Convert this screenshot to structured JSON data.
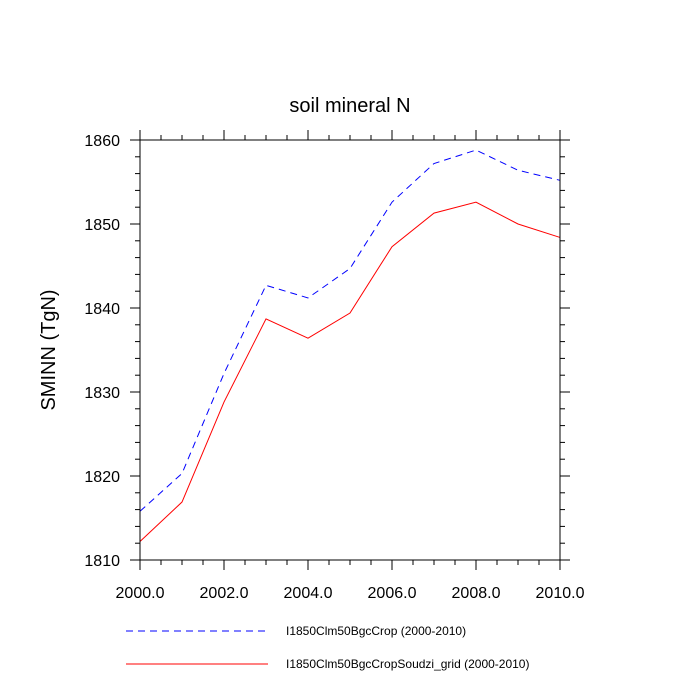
{
  "chart_data": {
    "type": "line",
    "title": "soil mineral N",
    "xlabel": "",
    "ylabel": "SMINN  (TgN)",
    "xlim": [
      2000,
      2010
    ],
    "ylim": [
      1810,
      1860
    ],
    "x_ticks": [
      "2000.0",
      "2002.0",
      "2004.0",
      "2006.0",
      "2008.0",
      "2010.0"
    ],
    "y_ticks": [
      "1810",
      "1820",
      "1830",
      "1840",
      "1850",
      "1860"
    ],
    "grid": false,
    "legend_placement": "bottom",
    "x": [
      2000,
      2001,
      2002,
      2003,
      2004,
      2005,
      2006,
      2007,
      2008,
      2009,
      2010
    ],
    "series": [
      {
        "name": "I1850Clm50BgcCrop (2000-2010)",
        "color": "#0000ff",
        "style": "dashed",
        "values": [
          1815.8,
          1820.3,
          1832.2,
          1842.7,
          1841.2,
          1844.7,
          1852.6,
          1857.2,
          1858.8,
          1856.4,
          1855.2
        ]
      },
      {
        "name": "I1850Clm50BgcCropSoudzi_grid (2000-2010)",
        "color": "#ff0000",
        "style": "solid",
        "values": [
          1812.2,
          1816.9,
          1828.8,
          1838.7,
          1836.4,
          1839.4,
          1847.3,
          1851.3,
          1852.6,
          1850.0,
          1848.4
        ]
      }
    ]
  }
}
